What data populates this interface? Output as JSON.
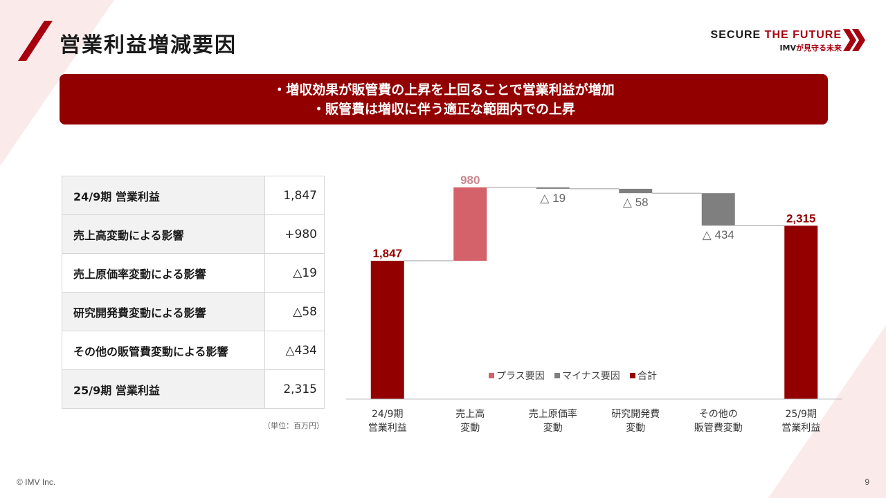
{
  "page": {
    "title": "営業利益増減要因",
    "brand_main_dark": "SECURE ",
    "brand_main_red": "THE FUTURE",
    "brand_sub_a": "IMV",
    "brand_sub_b": "が見守る未来",
    "banner_lines": [
      "・増収効果が販管費の上昇を上回ることで営業利益が増加",
      "・販管費は増収に伴う適正な範囲内での上昇"
    ],
    "unit_note": "（単位：百万円）",
    "copyright": "© IMV Inc.",
    "page_number": "9"
  },
  "table": {
    "rows": [
      {
        "label": "24/9期 営業利益",
        "value": "1,847"
      },
      {
        "label": "売上高変動による影響",
        "value": "+980"
      },
      {
        "label": "売上原価率変動による影響",
        "value": "△19"
      },
      {
        "label": "研究開発費変動による影響",
        "value": "△58"
      },
      {
        "label": "その他の販管費変動による影響",
        "value": "△434"
      },
      {
        "label": "25/9期 営業利益",
        "value": "2,315"
      }
    ]
  },
  "chart_data": {
    "type": "bar",
    "subtype": "waterfall",
    "categories": [
      [
        "24/9期",
        "営業利益"
      ],
      [
        "売上高",
        "変動"
      ],
      [
        "売上原価率",
        "変動"
      ],
      [
        "研究開発費",
        "変動"
      ],
      [
        "その他の",
        "販管費変動"
      ],
      [
        "25/9期",
        "営業利益"
      ]
    ],
    "values": [
      1847,
      980,
      -19,
      -58,
      -434,
      2315
    ],
    "kinds": [
      "total",
      "plus",
      "minus",
      "minus",
      "minus",
      "total"
    ],
    "data_labels": [
      "1,847",
      "980",
      "△ 19",
      "△ 58",
      "△ 434",
      "2,315"
    ],
    "legend": [
      {
        "key": "plus",
        "label": "プラス要因"
      },
      {
        "key": "minus",
        "label": "マイナス要因"
      },
      {
        "key": "total",
        "label": "合計"
      }
    ],
    "colors": {
      "plus": "#d4626a",
      "minus": "#7f7f7f",
      "total": "#930000",
      "plus_label": "#c9878c"
    },
    "ylim": [
      0,
      2900
    ],
    "grid": false,
    "legend_position": "inside-right"
  }
}
